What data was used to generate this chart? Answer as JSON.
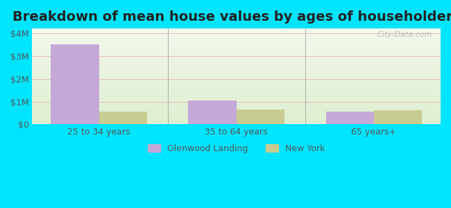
{
  "title": "Breakdown of mean house values by ages of householders",
  "categories": [
    "25 to 34 years",
    "35 to 64 years",
    "65 years+"
  ],
  "glenwood_values": [
    3500000,
    1050000,
    550000
  ],
  "newyork_values": [
    550000,
    650000,
    620000
  ],
  "bar_color_glenwood": "#c4a8d8",
  "bar_color_newyork": "#c8cc90",
  "yticks": [
    0,
    1000000,
    2000000,
    3000000,
    4000000
  ],
  "ytick_labels": [
    "$0",
    "$1M",
    "$2M",
    "$3M",
    "$4M"
  ],
  "ylim": [
    0,
    4200000
  ],
  "legend_labels": [
    "Glenwood Landing",
    "New York"
  ],
  "background_outer": "#00e5ff",
  "background_inner_top": "#f0f5e8",
  "background_inner_bottom": "#e8f5e0",
  "watermark": "City-Data.com",
  "title_fontsize": 14,
  "bar_width": 0.35
}
